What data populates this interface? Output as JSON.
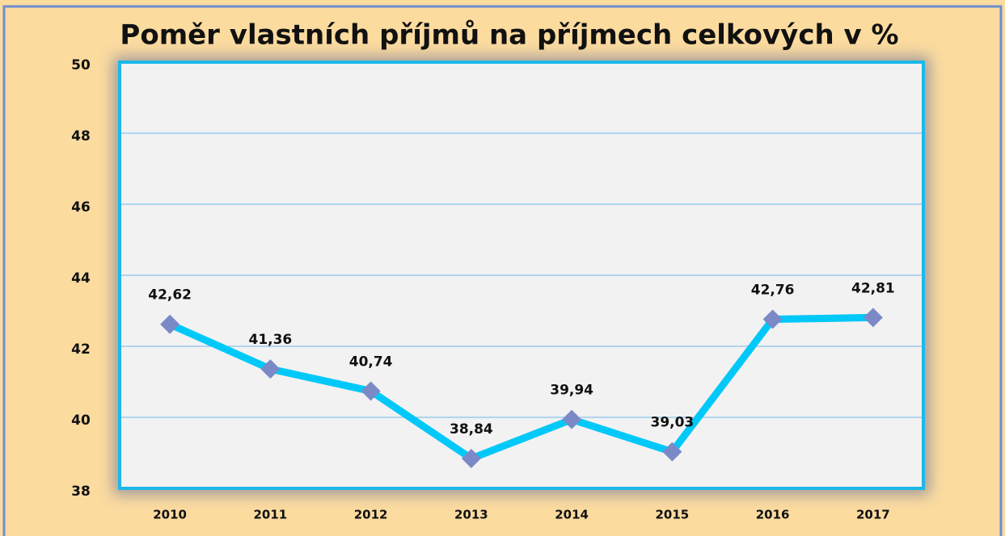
{
  "chart_data": {
    "type": "line",
    "title": "Poměr vlastních příjmů na příjmech celkových v %",
    "categories": [
      "2010",
      "2011",
      "2012",
      "2013",
      "2014",
      "2015",
      "2016",
      "2017"
    ],
    "series": [
      {
        "color": "#00c8f8",
        "marker_color": "#7b8ac6",
        "values": [
          42.62,
          41.36,
          40.74,
          38.84,
          39.94,
          39.03,
          42.76,
          42.81
        ],
        "value_labels": [
          "42,62",
          "41,36",
          "40,74",
          "38,84",
          "39,94",
          "39,03",
          "42,76",
          "42,81"
        ]
      }
    ],
    "ylim": [
      38,
      50
    ],
    "yticks": [
      38,
      40,
      42,
      44,
      46,
      48,
      50
    ],
    "grid": true
  }
}
